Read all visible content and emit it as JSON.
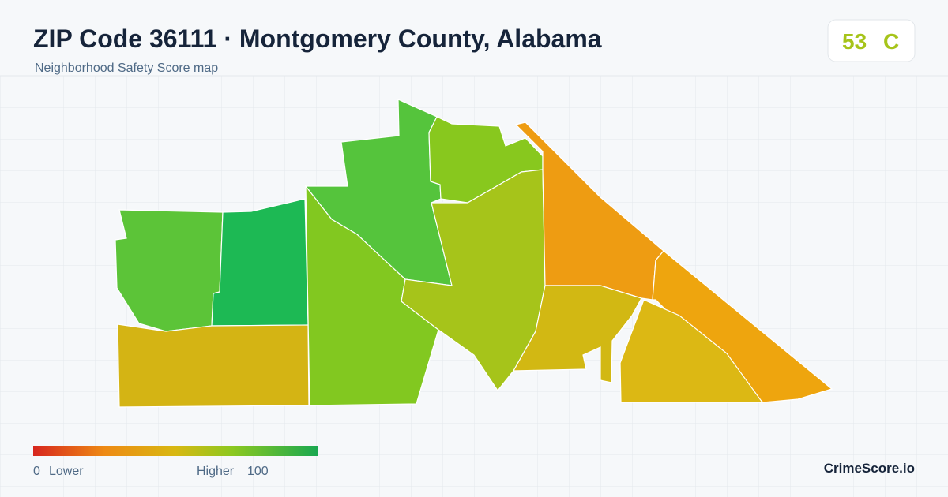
{
  "header": {
    "title": "ZIP Code 36111 · Montgomery County, Alabama",
    "subtitle": "Neighborhood Safety Score map"
  },
  "score": {
    "value": "53",
    "grade": "C"
  },
  "legend": {
    "min": "0",
    "min_label": "Lower",
    "max_label": "Higher",
    "max": "100"
  },
  "brand": "CrimeScore.io"
}
